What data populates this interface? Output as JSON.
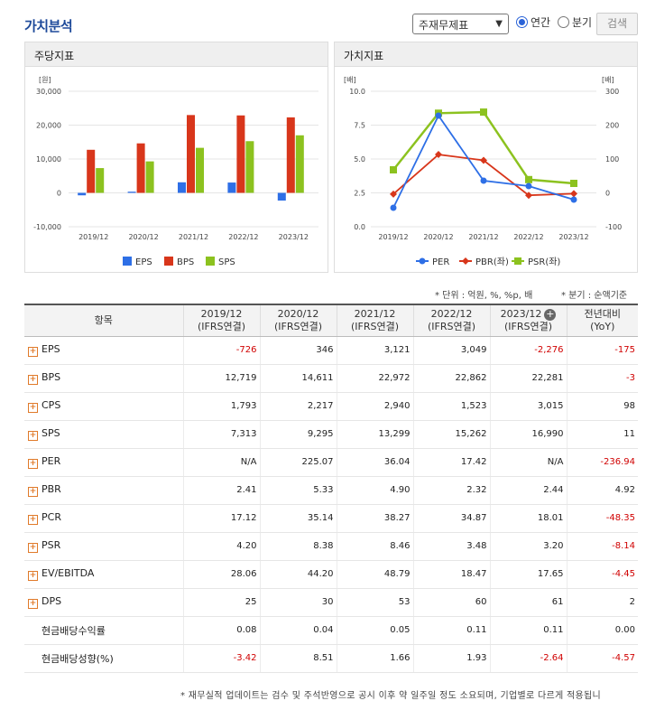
{
  "header": {
    "title": "가치분석",
    "select_value": "주재무제표",
    "radio_annual": "연간",
    "radio_quarter": "분기",
    "search_label": "검색"
  },
  "panels": {
    "left_title": "주당지표",
    "right_title": "가치지표"
  },
  "chart_data": [
    {
      "type": "bar",
      "title": "주당지표",
      "ylabel": "[원]",
      "categories": [
        "2019/12",
        "2020/12",
        "2021/12",
        "2022/12",
        "2023/12"
      ],
      "ylim": [
        -10000,
        30000
      ],
      "yticks": [
        "30,000",
        "20,000",
        "10,000",
        "0",
        "-10,000"
      ],
      "series": [
        {
          "name": "EPS",
          "color": "#2e6fe6",
          "values": [
            -726,
            346,
            3121,
            3049,
            -2276
          ]
        },
        {
          "name": "BPS",
          "color": "#d8361b",
          "values": [
            12719,
            14611,
            22972,
            22862,
            22281
          ]
        },
        {
          "name": "SPS",
          "color": "#8cc21f",
          "values": [
            7313,
            9295,
            13299,
            15262,
            16990
          ]
        }
      ]
    },
    {
      "type": "line",
      "title": "가치지표",
      "ylabel_left": "[배]",
      "ylabel_right": "[배]",
      "categories": [
        "2019/12",
        "2020/12",
        "2021/12",
        "2022/12",
        "2023/12"
      ],
      "ylim_left": [
        0,
        10
      ],
      "ylim_right": [
        -100,
        300
      ],
      "yticks_left": [
        "10.0",
        "7.5",
        "5.0",
        "2.5",
        "0.0"
      ],
      "yticks_right": [
        "300",
        "200",
        "100",
        "0",
        "-100"
      ],
      "series": [
        {
          "name": "PER",
          "color": "#2e6fe6",
          "axis": "right",
          "values": [
            null,
            225.07,
            36.04,
            17.42,
            null
          ]
        },
        {
          "name": "PBR(좌)",
          "color": "#d8361b",
          "axis": "left",
          "values": [
            2.41,
            5.33,
            4.9,
            2.32,
            2.44
          ]
        },
        {
          "name": "PSR(좌)",
          "color": "#8cc21f",
          "axis": "left",
          "values": [
            4.2,
            8.38,
            8.46,
            3.48,
            3.2
          ]
        }
      ]
    }
  ],
  "notes": {
    "unit": "* 단위 : 억원, %, %p, 배",
    "quarter": "* 분기 : 순액기준",
    "footer": "* 재무실적 업데이트는 검수 및 주석반영으로 공시 이후 약 일주일 정도 소요되며, 기업별로 다르게 적용됩니"
  },
  "table": {
    "header_item": "항목",
    "columns": [
      {
        "year": "2019/12",
        "basis": "(IFRS연결)"
      },
      {
        "year": "2020/12",
        "basis": "(IFRS연결)"
      },
      {
        "year": "2021/12",
        "basis": "(IFRS연결)"
      },
      {
        "year": "2022/12",
        "basis": "(IFRS연결)"
      },
      {
        "year": "2023/12",
        "basis": "(IFRS연결)"
      }
    ],
    "last_col": {
      "line1": "전년대비",
      "line2": "(YoY)"
    },
    "rows": [
      {
        "label": "EPS",
        "expand": true,
        "values": [
          "-726",
          "346",
          "3,121",
          "3,049",
          "-2,276",
          "-175"
        ]
      },
      {
        "label": "BPS",
        "expand": true,
        "values": [
          "12,719",
          "14,611",
          "22,972",
          "22,862",
          "22,281",
          "-3"
        ]
      },
      {
        "label": "CPS",
        "expand": true,
        "values": [
          "1,793",
          "2,217",
          "2,940",
          "1,523",
          "3,015",
          "98"
        ]
      },
      {
        "label": "SPS",
        "expand": true,
        "values": [
          "7,313",
          "9,295",
          "13,299",
          "15,262",
          "16,990",
          "11"
        ]
      },
      {
        "label": "PER",
        "expand": true,
        "values": [
          "N/A",
          "225.07",
          "36.04",
          "17.42",
          "N/A",
          "-236.94"
        ]
      },
      {
        "label": "PBR",
        "expand": true,
        "values": [
          "2.41",
          "5.33",
          "4.90",
          "2.32",
          "2.44",
          "4.92"
        ]
      },
      {
        "label": "PCR",
        "expand": true,
        "values": [
          "17.12",
          "35.14",
          "38.27",
          "34.87",
          "18.01",
          "-48.35"
        ]
      },
      {
        "label": "PSR",
        "expand": true,
        "values": [
          "4.20",
          "8.38",
          "8.46",
          "3.48",
          "3.20",
          "-8.14"
        ]
      },
      {
        "label": "EV/EBITDA",
        "expand": true,
        "values": [
          "28.06",
          "44.20",
          "48.79",
          "18.47",
          "17.65",
          "-4.45"
        ]
      },
      {
        "label": "DPS",
        "expand": true,
        "values": [
          "25",
          "30",
          "53",
          "60",
          "61",
          "2"
        ]
      },
      {
        "label": "현금배당수익률",
        "expand": false,
        "values": [
          "0.08",
          "0.04",
          "0.05",
          "0.11",
          "0.11",
          "0.00"
        ]
      },
      {
        "label": "현금배당성향(%)",
        "expand": false,
        "values": [
          "-3.42",
          "8.51",
          "1.66",
          "1.93",
          "-2.64",
          "-4.57"
        ]
      }
    ]
  }
}
